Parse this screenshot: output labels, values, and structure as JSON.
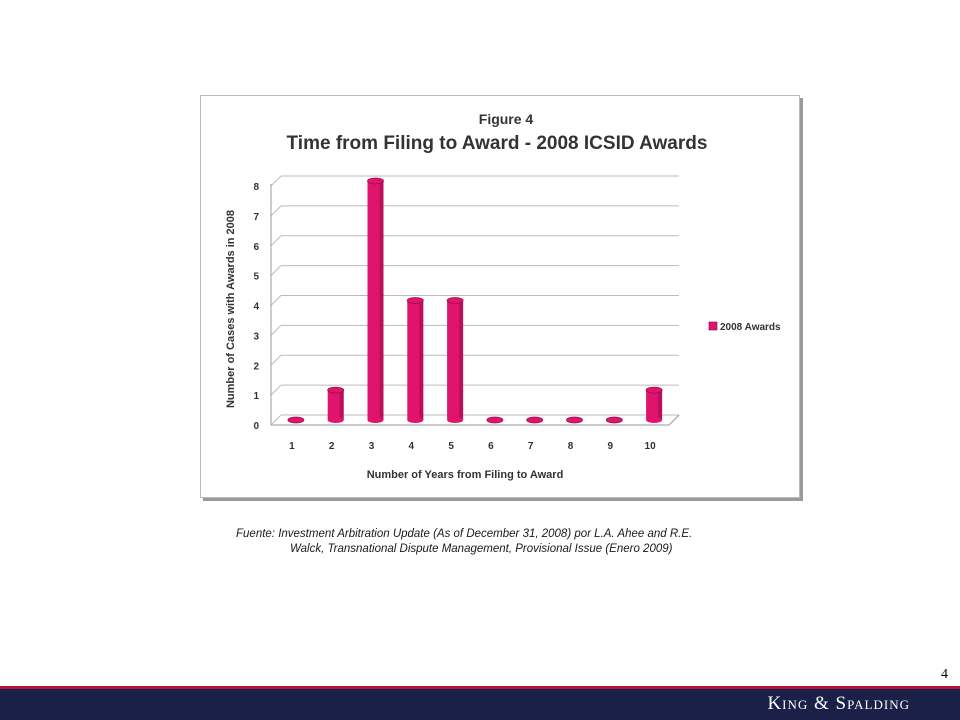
{
  "chart_data": {
    "type": "bar",
    "figure_label": "Figure 4",
    "title": "Time from Filing to Award - 2008 ICSID Awards",
    "xlabel": "Number of Years from Filing to Award",
    "ylabel": "Number of Cases with Awards in 2008",
    "categories": [
      "1",
      "2",
      "3",
      "4",
      "5",
      "6",
      "7",
      "8",
      "9",
      "10"
    ],
    "series": [
      {
        "name": "2008 Awards",
        "values": [
          0,
          1,
          8,
          4,
          4,
          0,
          0,
          0,
          0,
          1
        ],
        "color": "#e0136d"
      }
    ],
    "ylim": [
      0,
      8
    ],
    "yticks": [
      0,
      1,
      2,
      3,
      4,
      5,
      6,
      7,
      8
    ],
    "grid": true,
    "legend_position": "right"
  },
  "source_note": {
    "line1": "Fuente:  Investment Arbitration Update (As of December 31, 2008) por L.A. Ahee and R.E.",
    "line2": "Walck, Transnational Dispute Management,  Provisional Issue (Enero 2009)"
  },
  "page_number": "4",
  "footer": {
    "brand": "King & Spalding",
    "bar_color": "#1a2048",
    "accent_color": "#b3123a"
  }
}
